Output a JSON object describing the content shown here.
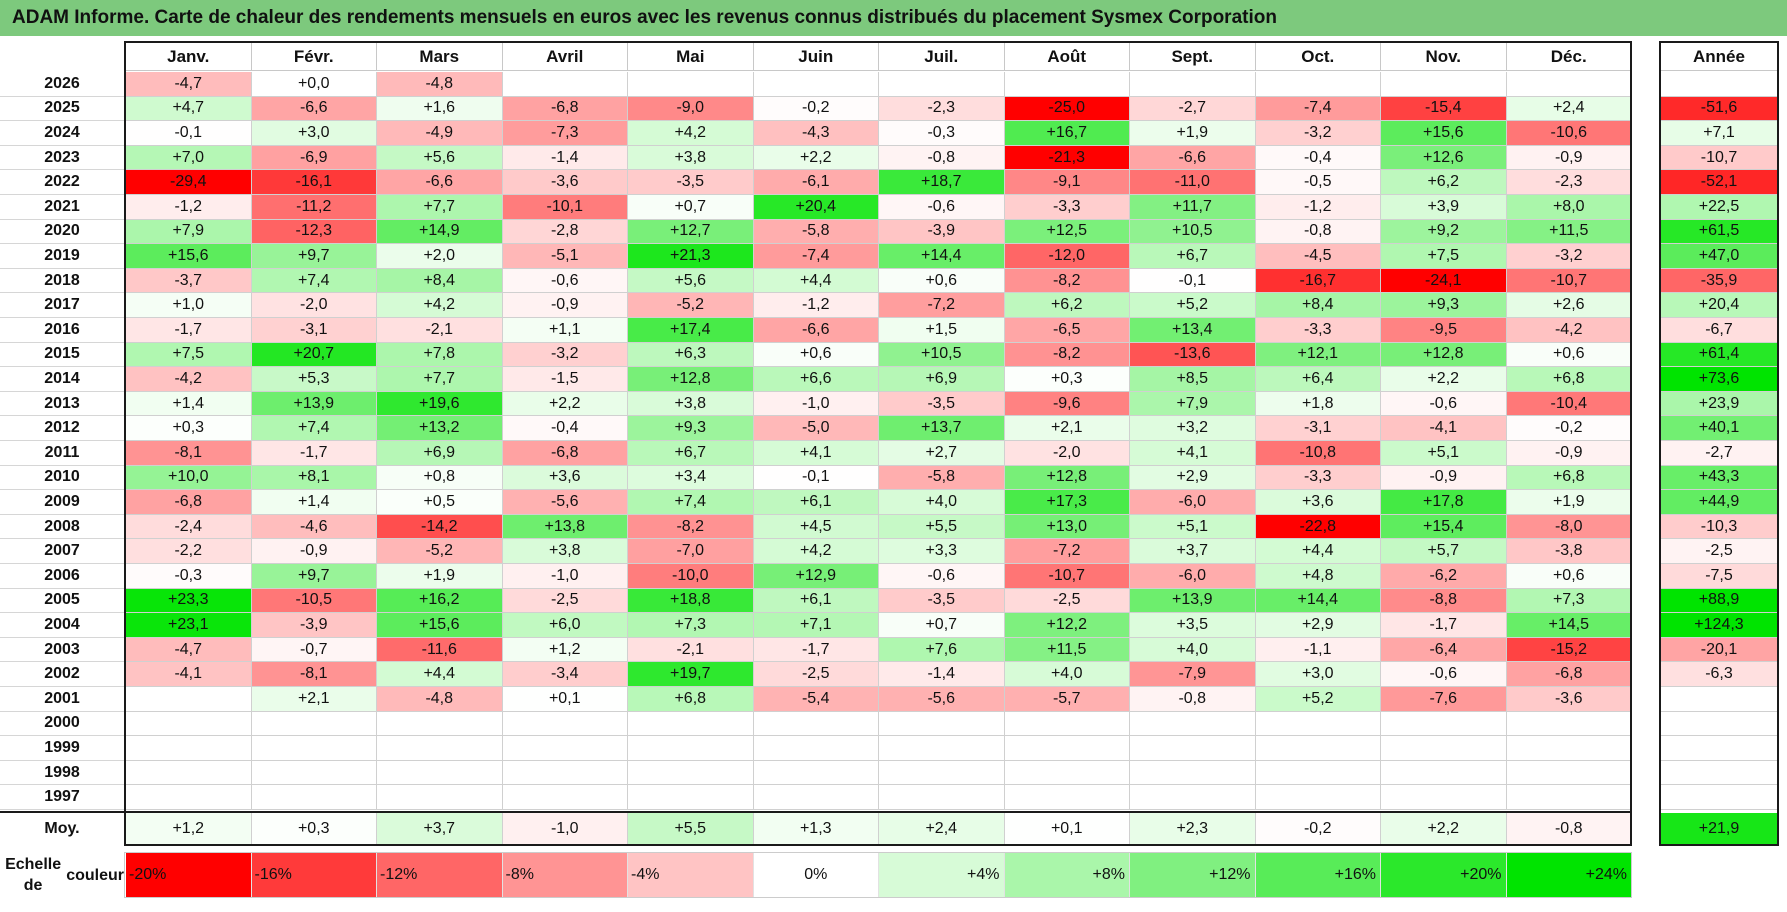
{
  "title": "ADAM Informe. Carte de chaleur des rendements mensuels en euros avec les revenus connus distribués du placement Sysmex Corporation",
  "months": [
    "Janv.",
    "Févr.",
    "Mars",
    "Avril",
    "Mai",
    "Juin",
    "Juil.",
    "Août",
    "Sept.",
    "Oct.",
    "Nov.",
    "Déc."
  ],
  "year_header": "Année",
  "average_label": "Moy.",
  "chart_data": {
    "type": "heatmap",
    "title": "Carte de chaleur des rendements mensuels en euros",
    "unit": "EUR",
    "rows": [
      {
        "year": "2026",
        "values": [
          -4.7,
          0.0,
          -4.8,
          null,
          null,
          null,
          null,
          null,
          null,
          null,
          null,
          null
        ],
        "total": null
      },
      {
        "year": "2025",
        "values": [
          4.7,
          -6.6,
          1.6,
          -6.8,
          -9.0,
          -0.2,
          -2.3,
          -25.0,
          -2.7,
          -7.4,
          -15.4,
          2.4
        ],
        "total": -51.6
      },
      {
        "year": "2024",
        "values": [
          -0.1,
          3.0,
          -4.9,
          -7.3,
          4.2,
          -4.3,
          -0.3,
          16.7,
          1.9,
          -3.2,
          15.6,
          -10.6
        ],
        "total": 7.1
      },
      {
        "year": "2023",
        "values": [
          7.0,
          -6.9,
          5.6,
          -1.4,
          3.8,
          2.2,
          -0.8,
          -21.3,
          -6.6,
          -0.4,
          12.6,
          -0.9
        ],
        "total": -10.7
      },
      {
        "year": "2022",
        "values": [
          -29.4,
          -16.1,
          -6.6,
          -3.6,
          -3.5,
          -6.1,
          18.7,
          -9.1,
          -11.0,
          -0.5,
          6.2,
          -2.3
        ],
        "total": -52.1
      },
      {
        "year": "2021",
        "values": [
          -1.2,
          -11.2,
          7.7,
          -10.1,
          0.7,
          20.4,
          -0.6,
          -3.3,
          11.7,
          -1.2,
          3.9,
          8.0
        ],
        "total": 22.5
      },
      {
        "year": "2020",
        "values": [
          7.9,
          -12.3,
          14.9,
          -2.8,
          12.7,
          -5.8,
          -3.9,
          12.5,
          10.5,
          -0.8,
          9.2,
          11.5
        ],
        "total": 61.5
      },
      {
        "year": "2019",
        "values": [
          15.6,
          9.7,
          2.0,
          -5.1,
          21.3,
          -7.4,
          14.4,
          -12.0,
          6.7,
          -4.5,
          7.5,
          -3.2
        ],
        "total": 47.0
      },
      {
        "year": "2018",
        "values": [
          -3.7,
          7.4,
          8.4,
          -0.6,
          5.6,
          4.4,
          0.6,
          -8.2,
          -0.1,
          -16.7,
          -24.1,
          -10.7
        ],
        "total": -35.9
      },
      {
        "year": "2017",
        "values": [
          1.0,
          -2.0,
          4.2,
          -0.9,
          -5.2,
          -1.2,
          -7.2,
          6.2,
          5.2,
          8.4,
          9.3,
          2.6
        ],
        "total": 20.4
      },
      {
        "year": "2016",
        "values": [
          -1.7,
          -3.1,
          -2.1,
          1.1,
          17.4,
          -6.6,
          1.5,
          -6.5,
          13.4,
          -3.3,
          -9.5,
          -4.2
        ],
        "total": -6.7
      },
      {
        "year": "2015",
        "values": [
          7.5,
          20.7,
          7.8,
          -3.2,
          6.3,
          0.6,
          10.5,
          -8.2,
          -13.6,
          12.1,
          12.8,
          0.6
        ],
        "total": 61.4
      },
      {
        "year": "2014",
        "values": [
          -4.2,
          5.3,
          7.7,
          -1.5,
          12.8,
          6.6,
          6.9,
          0.3,
          8.5,
          6.4,
          2.2,
          6.8
        ],
        "total": 73.6
      },
      {
        "year": "2013",
        "values": [
          1.4,
          13.9,
          19.6,
          2.2,
          3.8,
          -1.0,
          -3.5,
          -9.6,
          7.9,
          1.8,
          -0.6,
          -10.4
        ],
        "total": 23.9
      },
      {
        "year": "2012",
        "values": [
          0.3,
          7.4,
          13.2,
          -0.4,
          9.3,
          -5.0,
          13.7,
          2.1,
          3.2,
          -3.1,
          -4.1,
          -0.2
        ],
        "total": 40.1
      },
      {
        "year": "2011",
        "values": [
          -8.1,
          -1.7,
          6.9,
          -6.8,
          6.7,
          4.1,
          2.7,
          -2.0,
          4.1,
          -10.8,
          5.1,
          -0.9
        ],
        "total": -2.7
      },
      {
        "year": "2010",
        "values": [
          10.0,
          8.1,
          0.8,
          3.6,
          3.4,
          -0.1,
          -5.8,
          12.8,
          2.9,
          -3.3,
          -0.9,
          6.8
        ],
        "total": 43.3
      },
      {
        "year": "2009",
        "values": [
          -6.8,
          1.4,
          0.5,
          -5.6,
          7.4,
          6.1,
          4.0,
          17.3,
          -6.0,
          3.6,
          17.8,
          1.9
        ],
        "total": 44.9
      },
      {
        "year": "2008",
        "values": [
          -2.4,
          -4.6,
          -14.2,
          13.8,
          -8.2,
          4.5,
          5.5,
          13.0,
          5.1,
          -22.8,
          15.4,
          -8.0
        ],
        "total": -10.3
      },
      {
        "year": "2007",
        "values": [
          -2.2,
          -0.9,
          -5.2,
          3.8,
          -7.0,
          4.2,
          3.3,
          -7.2,
          3.7,
          4.4,
          5.7,
          -3.8
        ],
        "total": -2.5
      },
      {
        "year": "2006",
        "values": [
          -0.3,
          9.7,
          1.9,
          -1.0,
          -10.0,
          12.9,
          -0.6,
          -10.7,
          -6.0,
          4.8,
          -6.2,
          0.6
        ],
        "total": -7.5
      },
      {
        "year": "2005",
        "values": [
          23.3,
          -10.5,
          16.2,
          -2.5,
          18.8,
          6.1,
          -3.5,
          -2.5,
          13.9,
          14.4,
          -8.8,
          7.3
        ],
        "total": 88.9
      },
      {
        "year": "2004",
        "values": [
          23.1,
          -3.9,
          15.6,
          6.0,
          7.3,
          7.1,
          0.7,
          12.2,
          3.5,
          2.9,
          -1.7,
          14.5
        ],
        "total": 124.3
      },
      {
        "year": "2003",
        "values": [
          -4.7,
          -0.7,
          -11.6,
          1.2,
          -2.1,
          -1.7,
          7.6,
          11.5,
          4.0,
          -1.1,
          -6.4,
          -15.2
        ],
        "total": -20.1
      },
      {
        "year": "2002",
        "values": [
          -4.1,
          -8.1,
          4.4,
          -3.4,
          19.7,
          -2.5,
          -1.4,
          4.0,
          -7.9,
          3.0,
          -0.6,
          -6.8
        ],
        "total": -6.3
      },
      {
        "year": "2001",
        "values": [
          null,
          2.1,
          -4.8,
          0.1,
          6.8,
          -5.4,
          -5.6,
          -5.7,
          -0.8,
          5.2,
          -7.6,
          -3.6
        ],
        "total": null
      },
      {
        "year": "2000",
        "values": [
          null,
          null,
          null,
          null,
          null,
          null,
          null,
          null,
          null,
          null,
          null,
          null
        ],
        "total": null
      },
      {
        "year": "1999",
        "values": [
          null,
          null,
          null,
          null,
          null,
          null,
          null,
          null,
          null,
          null,
          null,
          null
        ],
        "total": null
      },
      {
        "year": "1998",
        "values": [
          null,
          null,
          null,
          null,
          null,
          null,
          null,
          null,
          null,
          null,
          null,
          null
        ],
        "total": null
      },
      {
        "year": "1997",
        "values": [
          null,
          null,
          null,
          null,
          null,
          null,
          null,
          null,
          null,
          null,
          null,
          null
        ],
        "total": null
      }
    ],
    "averages": [
      1.2,
      0.3,
      3.7,
      -1.0,
      5.5,
      1.3,
      2.4,
      0.1,
      2.3,
      -0.2,
      2.2,
      -0.8
    ],
    "average_total": 21.9
  },
  "color_scale": {
    "label_line1": "Echelle de",
    "label_line2": "couleur",
    "steps": [
      {
        "label": "-20%",
        "color": "#ff0000"
      },
      {
        "label": "-16%",
        "color": "#ff3a3a"
      },
      {
        "label": "-12%",
        "color": "#ff6666"
      },
      {
        "label": "-8%",
        "color": "#ff9494"
      },
      {
        "label": "-4%",
        "color": "#ffc4c4"
      },
      {
        "label": "0%",
        "color": "#ffffff"
      },
      {
        "label": "+4%",
        "color": "#d7fbd7"
      },
      {
        "label": "+8%",
        "color": "#aaf6aa"
      },
      {
        "label": "+12%",
        "color": "#80f080"
      },
      {
        "label": "+16%",
        "color": "#58ec58"
      },
      {
        "label": "+20%",
        "color": "#2be82b"
      },
      {
        "label": "+24%",
        "color": "#00e400"
      }
    ]
  },
  "colors": {
    "title_bar": "#7dc97d",
    "positive_max": "#00e400",
    "negative_max": "#ff0000"
  }
}
